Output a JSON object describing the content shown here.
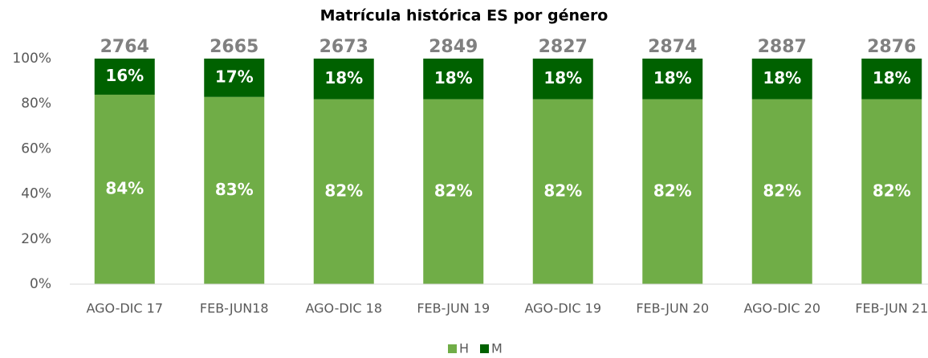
{
  "chart_data": {
    "type": "stacked_bar_100",
    "title": "Matrícula histórica ES por género",
    "categories": [
      "AGO-DIC 17",
      "FEB-JUN18",
      "AGO-DIC 18",
      "FEB-JUN 19",
      "AGO-DIC 19",
      "FEB-JUN 20",
      "AGO-DIC 20",
      "FEB-JUN 21"
    ],
    "series": [
      {
        "name": "H",
        "color": "#70ad47",
        "values": [
          84,
          83,
          82,
          82,
          82,
          82,
          82,
          82
        ],
        "value_labels": [
          "84%",
          "83%",
          "82%",
          "82%",
          "82%",
          "82%",
          "82%",
          "82%"
        ]
      },
      {
        "name": "M",
        "color": "#006100",
        "values": [
          16,
          17,
          18,
          18,
          18,
          18,
          18,
          18
        ],
        "value_labels": [
          "16%",
          "17%",
          "18%",
          "18%",
          "18%",
          "18%",
          "18%",
          "18%"
        ]
      }
    ],
    "totals": [
      2764,
      2665,
      2673,
      2849,
      2827,
      2874,
      2887,
      2876
    ],
    "ylim": [
      0,
      100
    ],
    "yticks": [
      {
        "value": 0,
        "label": "0%"
      },
      {
        "value": 20,
        "label": "20%"
      },
      {
        "value": 40,
        "label": "40%"
      },
      {
        "value": 60,
        "label": "60%"
      },
      {
        "value": 80,
        "label": "80%"
      },
      {
        "value": 100,
        "label": "100%"
      }
    ],
    "grid": false,
    "legend": "bottom"
  }
}
